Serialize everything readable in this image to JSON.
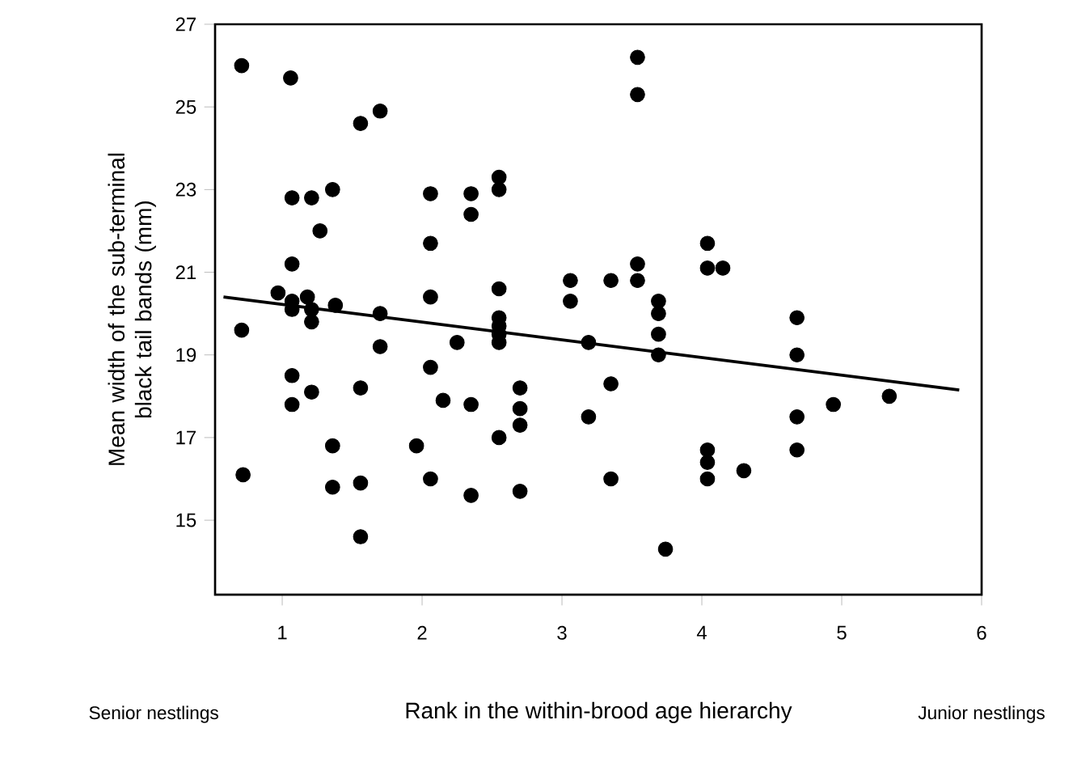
{
  "chart_data": {
    "type": "scatter",
    "xlabel": "Rank in the within-brood age hierarchy",
    "ylabel": "Mean width of the sub-terminal black tail bands (mm)",
    "annotations": [
      "Senior nestlings",
      "Junior nestlings"
    ],
    "xlim": [
      0.52,
      6.0
    ],
    "ylim": [
      13.2,
      27
    ],
    "xticks": [
      1,
      2,
      3,
      4,
      5,
      6
    ],
    "yticks": [
      15,
      17,
      19,
      21,
      23,
      25,
      27
    ],
    "grid": false,
    "series": [
      {
        "marker": "circle",
        "color": "#000000",
        "x": [
          0.71,
          1.06,
          1.56,
          1.7,
          1.07,
          1.21,
          1.36,
          1.27,
          2.06,
          2.06,
          2.35,
          2.35,
          2.55,
          2.55,
          1.07,
          3.06,
          3.06,
          2.06,
          2.55,
          3.54,
          3.54,
          4.04,
          4.04,
          4.15,
          3.54,
          3.54,
          3.35,
          3.69,
          3.69,
          3.69,
          3.69,
          4.68,
          4.68,
          4.68,
          4.68,
          0.97,
          1.07,
          1.07,
          1.18,
          1.21,
          1.21,
          1.38,
          1.7,
          1.7,
          2.55,
          2.55,
          2.55,
          2.55,
          3.19,
          0.71,
          1.07,
          1.07,
          1.21,
          1.56,
          2.06,
          2.15,
          2.25,
          2.35,
          2.55,
          2.7,
          2.7,
          2.7,
          1.36,
          1.96,
          0.72,
          1.36,
          1.56,
          2.06,
          2.35,
          2.7,
          1.56,
          3.19,
          3.35,
          3.35,
          4.04,
          4.04,
          4.04,
          4.3,
          4.94,
          5.34,
          3.74
        ],
        "values": [
          26.0,
          25.7,
          24.6,
          24.9,
          22.8,
          22.8,
          23.0,
          22.0,
          22.9,
          21.7,
          22.9,
          22.4,
          23.3,
          23.0,
          21.2,
          20.8,
          20.3,
          20.4,
          20.6,
          26.2,
          25.3,
          21.7,
          21.1,
          21.1,
          21.2,
          20.8,
          20.8,
          20.3,
          20.0,
          19.5,
          19.0,
          19.9,
          19.0,
          17.5,
          16.7,
          20.5,
          20.3,
          20.1,
          20.4,
          20.1,
          19.8,
          20.2,
          20.0,
          19.2,
          19.9,
          19.7,
          19.5,
          19.3,
          19.3,
          19.6,
          18.5,
          17.8,
          18.1,
          18.2,
          18.7,
          17.9,
          19.3,
          17.8,
          17.0,
          18.2,
          17.7,
          17.3,
          16.8,
          16.8,
          16.1,
          15.8,
          15.9,
          16.0,
          15.6,
          15.7,
          14.6,
          17.5,
          18.3,
          16.0,
          16.7,
          16.4,
          16.0,
          16.2,
          17.8,
          18.0,
          14.3
        ]
      },
      {
        "type": "line",
        "marker": "none",
        "color": "#000000",
        "x": [
          0.58,
          5.84
        ],
        "values": [
          20.4,
          18.15
        ]
      }
    ]
  }
}
